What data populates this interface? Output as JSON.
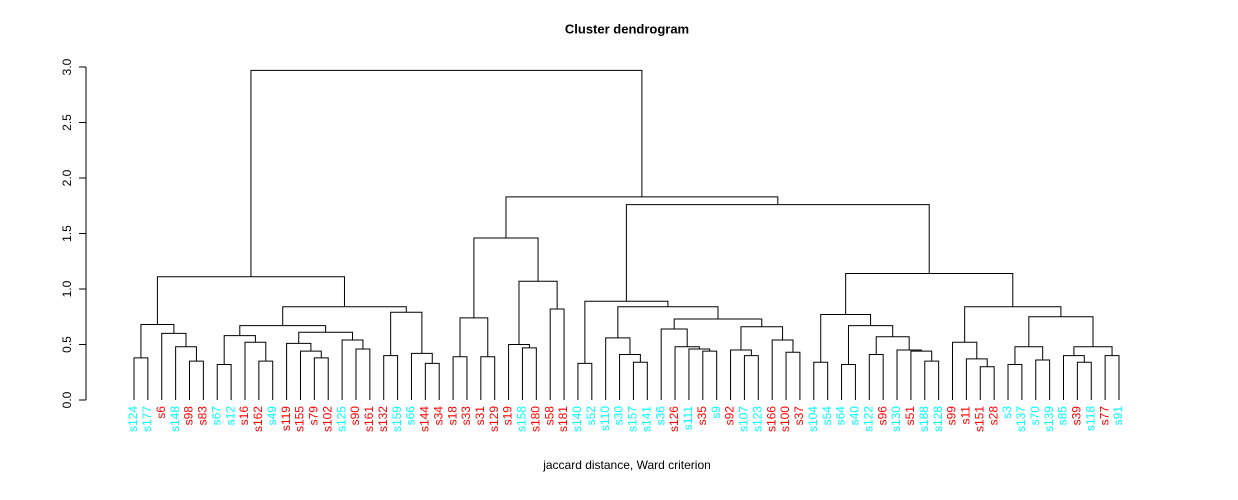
{
  "chart_data": {
    "type": "dendrogram",
    "title": "Cluster dendrogram",
    "x_label": "jaccard distance, Ward criterion",
    "labels": [
      "s124",
      "s177",
      "s6",
      "s148",
      "s98",
      "s83",
      "s67",
      "s12",
      "s16",
      "s162",
      "s49",
      "s119",
      "s155",
      "s79",
      "s102",
      "s125",
      "s90",
      "s161",
      "s132",
      "s159",
      "s66",
      "s144",
      "s34",
      "s18",
      "s33",
      "s31",
      "s129",
      "s19",
      "s158",
      "s180",
      "s58",
      "s181",
      "s140",
      "s52",
      "s110",
      "s30",
      "s157",
      "s141",
      "s36",
      "s126",
      "s111",
      "s35",
      "s9",
      "s92",
      "s107",
      "s123",
      "s166",
      "s100",
      "s37",
      "s104",
      "s54",
      "s64",
      "s40",
      "s122",
      "s96",
      "s130",
      "s51",
      "s188",
      "s128",
      "s99",
      "s11",
      "s151",
      "s28",
      "s3",
      "s137",
      "s70",
      "s139",
      "s85",
      "s39",
      "s118",
      "s77",
      "s91"
    ],
    "label_colors": [
      "cyan",
      "cyan",
      "red",
      "cyan",
      "red",
      "red",
      "cyan",
      "cyan",
      "red",
      "red",
      "cyan",
      "red",
      "red",
      "red",
      "red",
      "cyan",
      "red",
      "red",
      "red",
      "cyan",
      "cyan",
      "red",
      "red",
      "red",
      "red",
      "red",
      "red",
      "red",
      "cyan",
      "red",
      "red",
      "red",
      "cyan",
      "cyan",
      "cyan",
      "cyan",
      "cyan",
      "cyan",
      "cyan",
      "red",
      "cyan",
      "red",
      "cyan",
      "red",
      "cyan",
      "cyan",
      "red",
      "red",
      "red",
      "cyan",
      "cyan",
      "cyan",
      "cyan",
      "cyan",
      "red",
      "cyan",
      "red",
      "cyan",
      "cyan",
      "red",
      "red",
      "red",
      "red",
      "cyan",
      "cyan",
      "cyan",
      "cyan",
      "cyan",
      "red",
      "cyan",
      "red",
      "cyan"
    ],
    "line_color": "#000000",
    "ylim": [
      0,
      3
    ],
    "yticks": [
      {
        "value": 0,
        "label": "0.0"
      },
      {
        "value": 0.5,
        "label": "0.5"
      },
      {
        "value": 1,
        "label": "1.0"
      },
      {
        "value": 1.5,
        "label": "1.5"
      },
      {
        "value": 2,
        "label": "2.0"
      },
      {
        "value": 2.5,
        "label": "2.5"
      },
      {
        "value": 3,
        "label": "3.0"
      }
    ],
    "tree": {
      "height": 2.97,
      "children": [
        {
          "height": 1.11,
          "children": [
            {
              "height": 0.68,
              "children": [
                {
                  "height": 0.38,
                  "children": [
                    0,
                    1
                  ]
                },
                {
                  "height": 0.6,
                  "children": [
                    2,
                    {
                      "height": 0.48,
                      "children": [
                        3,
                        {
                          "height": 0.35,
                          "children": [
                            4,
                            5
                          ]
                        }
                      ]
                    }
                  ]
                }
              ]
            },
            {
              "height": 0.84,
              "children": [
                {
                  "height": 0.67,
                  "children": [
                    {
                      "height": 0.58,
                      "children": [
                        {
                          "height": 0.32,
                          "children": [
                            6,
                            7
                          ]
                        },
                        {
                          "height": 0.52,
                          "children": [
                            8,
                            {
                              "height": 0.35,
                              "children": [
                                9,
                                10
                              ]
                            }
                          ]
                        }
                      ]
                    },
                    {
                      "height": 0.61,
                      "children": [
                        {
                          "height": 0.51,
                          "children": [
                            11,
                            {
                              "height": 0.44,
                              "children": [
                                12,
                                {
                                  "height": 0.38,
                                  "children": [
                                    13,
                                    14
                                  ]
                                }
                              ]
                            }
                          ]
                        },
                        {
                          "height": 0.54,
                          "children": [
                            15,
                            {
                              "height": 0.46,
                              "children": [
                                16,
                                17
                              ]
                            }
                          ]
                        }
                      ]
                    }
                  ]
                },
                {
                  "height": 0.79,
                  "children": [
                    {
                      "height": 0.4,
                      "children": [
                        18,
                        19
                      ]
                    },
                    {
                      "height": 0.42,
                      "children": [
                        20,
                        {
                          "height": 0.33,
                          "children": [
                            21,
                            22
                          ]
                        }
                      ]
                    }
                  ]
                }
              ]
            }
          ]
        },
        {
          "height": 1.83,
          "children": [
            {
              "height": 1.46,
              "children": [
                {
                  "height": 0.74,
                  "children": [
                    {
                      "height": 0.39,
                      "children": [
                        23,
                        24
                      ]
                    },
                    {
                      "height": 0.39,
                      "children": [
                        25,
                        26
                      ]
                    }
                  ]
                },
                {
                  "height": 1.07,
                  "children": [
                    {
                      "height": 0.5,
                      "children": [
                        27,
                        {
                          "height": 0.47,
                          "children": [
                            28,
                            29
                          ]
                        }
                      ]
                    },
                    {
                      "height": 0.82,
                      "children": [
                        30,
                        31
                      ]
                    }
                  ]
                }
              ]
            },
            {
              "height": 1.76,
              "children": [
                {
                  "height": 0.89,
                  "children": [
                    {
                      "height": 0.33,
                      "children": [
                        32,
                        33
                      ]
                    },
                    {
                      "height": 0.84,
                      "children": [
                        {
                          "height": 0.56,
                          "children": [
                            34,
                            {
                              "height": 0.41,
                              "children": [
                                35,
                                {
                                  "height": 0.34,
                                  "children": [
                                    36,
                                    37
                                  ]
                                }
                              ]
                            }
                          ]
                        },
                        {
                          "height": 0.73,
                          "children": [
                            {
                              "height": 0.64,
                              "children": [
                                38,
                                {
                                  "height": 0.48,
                                  "children": [
                                    39,
                                    {
                                      "height": 0.46,
                                      "children": [
                                        40,
                                        {
                                          "height": 0.44,
                                          "children": [
                                            41,
                                            42
                                          ]
                                        }
                                      ]
                                    }
                                  ]
                                }
                              ]
                            },
                            {
                              "height": 0.66,
                              "children": [
                                {
                                  "height": 0.45,
                                  "children": [
                                    43,
                                    {
                                      "height": 0.4,
                                      "children": [
                                        44,
                                        45
                                      ]
                                    }
                                  ]
                                },
                                {
                                  "height": 0.54,
                                  "children": [
                                    46,
                                    {
                                      "height": 0.43,
                                      "children": [
                                        47,
                                        48
                                      ]
                                    }
                                  ]
                                }
                              ]
                            }
                          ]
                        }
                      ]
                    }
                  ]
                },
                {
                  "height": 1.14,
                  "children": [
                    {
                      "height": 0.77,
                      "children": [
                        {
                          "height": 0.34,
                          "children": [
                            49,
                            50
                          ]
                        },
                        {
                          "height": 0.67,
                          "children": [
                            {
                              "height": 0.32,
                              "children": [
                                51,
                                52
                              ]
                            },
                            {
                              "height": 0.57,
                              "children": [
                                {
                                  "height": 0.41,
                                  "children": [
                                    53,
                                    54
                                  ]
                                },
                                {
                                  "height": 0.45,
                                  "children": [
                                    55,
                                    {
                                      "height": 0.44,
                                      "children": [
                                        56,
                                        {
                                          "height": 0.35,
                                          "children": [
                                            57,
                                            58
                                          ]
                                        }
                                      ]
                                    }
                                  ]
                                }
                              ]
                            }
                          ]
                        }
                      ]
                    },
                    {
                      "height": 0.84,
                      "children": [
                        {
                          "height": 0.52,
                          "children": [
                            59,
                            {
                              "height": 0.37,
                              "children": [
                                60,
                                {
                                  "height": 0.3,
                                  "children": [
                                    61,
                                    62
                                  ]
                                }
                              ]
                            }
                          ]
                        },
                        {
                          "height": 0.75,
                          "children": [
                            {
                              "height": 0.48,
                              "children": [
                                {
                                  "height": 0.32,
                                  "children": [
                                    63,
                                    64
                                  ]
                                },
                                {
                                  "height": 0.36,
                                  "children": [
                                    65,
                                    66
                                  ]
                                }
                              ]
                            },
                            {
                              "height": 0.48,
                              "children": [
                                {
                                  "height": 0.4,
                                  "children": [
                                    67,
                                    {
                                      "height": 0.34,
                                      "children": [
                                        68,
                                        69
                                      ]
                                    }
                                  ]
                                },
                                {
                                  "height": 0.4,
                                  "children": [
                                    70,
                                    71
                                  ]
                                }
                              ]
                            }
                          ]
                        }
                      ]
                    }
                  ]
                }
              ]
            }
          ]
        }
      ]
    }
  }
}
